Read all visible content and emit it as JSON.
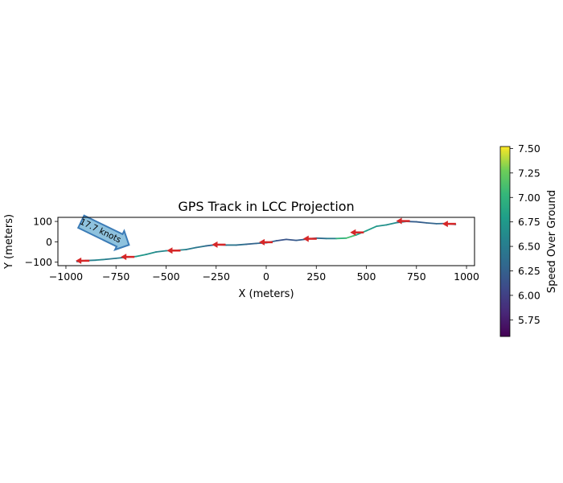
{
  "chart_data": {
    "type": "line",
    "title": "GPS Track in LCC Projection",
    "xlabel": "X (meters)",
    "ylabel": "Y (meters)",
    "xlim": [
      -1040,
      1040
    ],
    "ylim": [
      -117,
      120
    ],
    "xticks": [
      -1000,
      -750,
      -500,
      -250,
      0,
      250,
      500,
      750,
      1000
    ],
    "xtick_labels": [
      "−1000",
      "−750",
      "−500",
      "−250",
      "0",
      "250",
      "500",
      "750",
      "1000"
    ],
    "yticks": [
      -100,
      0,
      100
    ],
    "ytick_labels": [
      "−100",
      "0",
      "100"
    ],
    "grid": false,
    "colorbar": {
      "label": "Speed Over Ground",
      "range": [
        5.58,
        7.52
      ],
      "ticks": [
        5.75,
        6.0,
        6.25,
        6.5,
        6.75,
        7.0,
        7.25,
        7.5
      ],
      "tick_labels": [
        "5.75",
        "6.00",
        "6.25",
        "6.50",
        "6.75",
        "7.00",
        "7.25",
        "7.50"
      ],
      "colormap": "viridis"
    },
    "track": {
      "x": [
        -945,
        -900,
        -850,
        -800,
        -750,
        -700,
        -650,
        -600,
        -550,
        -500,
        -450,
        -400,
        -350,
        -300,
        -250,
        -200,
        -150,
        -100,
        -50,
        0,
        50,
        100,
        150,
        200,
        250,
        300,
        350,
        400,
        450,
        500,
        550,
        600,
        650,
        700,
        750,
        800,
        850,
        900,
        945
      ],
      "y": [
        -97,
        -92,
        -90,
        -86,
        -81,
        -76,
        -72,
        -62,
        -50,
        -44,
        -42,
        -38,
        -28,
        -20,
        -14,
        -16,
        -16,
        -12,
        -8,
        -5,
        5,
        12,
        7,
        13,
        18,
        16,
        16,
        18,
        34,
        54,
        76,
        83,
        94,
        100,
        98,
        93,
        89,
        90,
        85
      ],
      "speed": [
        6.3,
        6.45,
        6.6,
        6.55,
        6.4,
        6.6,
        6.7,
        6.8,
        6.55,
        6.6,
        6.7,
        6.45,
        6.5,
        6.35,
        6.25,
        6.4,
        6.45,
        6.3,
        6.25,
        6.35,
        6.2,
        6.1,
        6.25,
        6.2,
        6.4,
        6.3,
        6.7,
        7.3,
        6.9,
        6.75,
        6.8,
        6.6,
        6.7,
        6.3,
        6.15,
        6.3,
        6.25,
        6.4,
        6.3
      ]
    },
    "arrows": {
      "x": [
        -915,
        -690,
        -460,
        -235,
        0,
        220,
        455,
        685,
        915
      ],
      "y": [
        -93,
        -74,
        -43,
        -14,
        -2,
        15,
        46,
        102,
        88
      ],
      "color": "#d62728"
    },
    "annotation": {
      "text": "17.7 knots",
      "x": -895,
      "y": 85,
      "target_x": -685,
      "target_y": -15,
      "fill": "#8ec2de",
      "edge": "#3b7bb6"
    }
  }
}
